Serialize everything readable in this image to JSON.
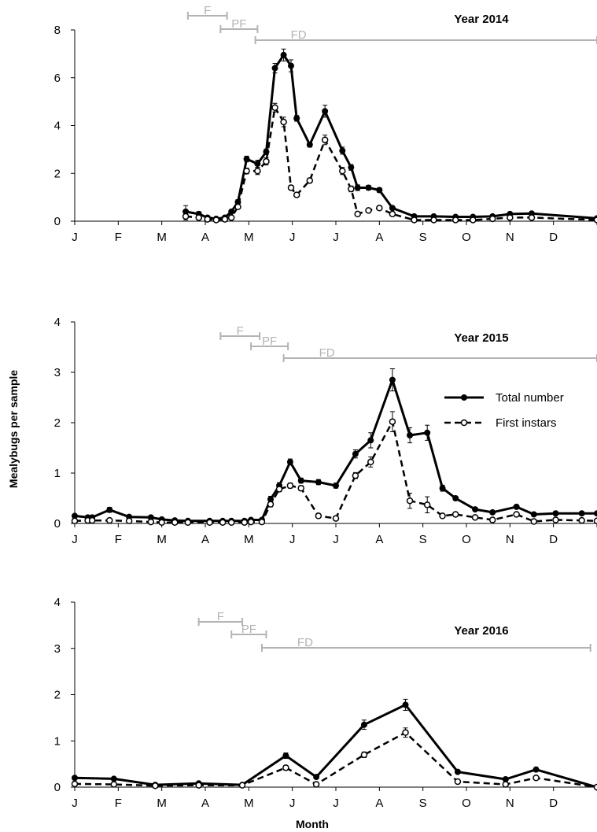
{
  "chart_data": [
    {
      "type": "line",
      "title": "Year 2014",
      "xlabel": "",
      "ylabel": "",
      "ylim": [
        0,
        8
      ],
      "yticks": [
        0,
        2,
        4,
        6,
        8
      ],
      "month_ticks": [
        "J",
        "F",
        "M",
        "A",
        "M",
        "J",
        "J",
        "A",
        "S",
        "O",
        "N",
        "D"
      ],
      "phases": [
        {
          "label": "F",
          "start": 2.6,
          "end": 3.5
        },
        {
          "label": "PF",
          "start": 3.35,
          "end": 4.2
        },
        {
          "label": "FD",
          "start": 4.15,
          "end": 12.0
        }
      ],
      "series": [
        {
          "name": "Total number",
          "style": "solid",
          "x": [
            2.55,
            2.85,
            3.05,
            3.25,
            3.45,
            3.6,
            3.75,
            3.95,
            4.2,
            4.4,
            4.6,
            4.8,
            4.97,
            5.1,
            5.4,
            5.75,
            6.15,
            6.35,
            6.5,
            6.75,
            7.0,
            7.3,
            7.8,
            8.25,
            8.75,
            9.15,
            9.6,
            10.0,
            10.5,
            12.0
          ],
          "y": [
            0.4,
            0.3,
            0.15,
            0.1,
            0.15,
            0.4,
            0.8,
            2.6,
            2.4,
            2.9,
            6.4,
            6.95,
            6.5,
            4.3,
            3.2,
            4.6,
            2.95,
            2.25,
            1.4,
            1.4,
            1.3,
            0.55,
            0.2,
            0.2,
            0.18,
            0.18,
            0.2,
            0.3,
            0.32,
            0.12
          ],
          "err": [
            0.25,
            0.1,
            0.08,
            0.05,
            0.05,
            0.08,
            0.1,
            0.12,
            0.15,
            0.12,
            0.2,
            0.25,
            0.25,
            0.12,
            0.1,
            0.25,
            0.15,
            0.12,
            0.12,
            0.1,
            0.1,
            0.08,
            0.05,
            0.05,
            0.05,
            0.05,
            0.05,
            0.05,
            0.05,
            0.05
          ]
        },
        {
          "name": "First instars",
          "style": "dashed",
          "x": [
            2.55,
            2.85,
            3.05,
            3.25,
            3.45,
            3.6,
            3.75,
            3.95,
            4.2,
            4.4,
            4.6,
            4.8,
            4.97,
            5.1,
            5.4,
            5.75,
            6.15,
            6.35,
            6.5,
            6.75,
            7.0,
            7.3,
            7.8,
            8.25,
            8.75,
            9.15,
            9.6,
            10.0,
            10.5,
            12.0
          ],
          "y": [
            0.2,
            0.15,
            0.08,
            0.05,
            0.08,
            0.15,
            0.6,
            2.1,
            2.1,
            2.5,
            4.75,
            4.15,
            1.4,
            1.1,
            1.7,
            3.4,
            2.1,
            1.35,
            0.3,
            0.45,
            0.55,
            0.3,
            0.05,
            0.05,
            0.05,
            0.05,
            0.1,
            0.15,
            0.15,
            0.05
          ],
          "err": [
            0.15,
            0.08,
            0.05,
            0.03,
            0.05,
            0.05,
            0.08,
            0.12,
            0.15,
            0.15,
            0.18,
            0.2,
            0.1,
            0.08,
            0.1,
            0.2,
            0.15,
            0.12,
            0.08,
            0.08,
            0.08,
            0.05,
            0.03,
            0.03,
            0.03,
            0.03,
            0.03,
            0.03,
            0.03,
            0.03
          ]
        }
      ]
    },
    {
      "type": "line",
      "title": "Year 2015",
      "xlabel": "",
      "ylabel": "",
      "ylim": [
        0,
        4
      ],
      "yticks": [
        0,
        1,
        2,
        3,
        4
      ],
      "month_ticks": [
        "J",
        "F",
        "M",
        "A",
        "M",
        "J",
        "J",
        "A",
        "S",
        "O",
        "N",
        "D"
      ],
      "phases": [
        {
          "label": "F",
          "start": 3.35,
          "end": 4.25
        },
        {
          "label": "PF",
          "start": 4.05,
          "end": 4.9
        },
        {
          "label": "FD",
          "start": 4.8,
          "end": 12.0
        }
      ],
      "series": [
        {
          "name": "Total number",
          "style": "solid",
          "x": [
            0.0,
            0.3,
            0.4,
            0.8,
            1.25,
            1.75,
            2.0,
            2.3,
            2.6,
            3.1,
            3.4,
            3.6,
            3.9,
            4.05,
            4.3,
            4.5,
            4.7,
            4.95,
            5.2,
            5.6,
            6.0,
            6.45,
            6.8,
            7.3,
            7.7,
            8.1,
            8.45,
            8.75,
            9.2,
            9.6,
            10.15,
            10.55,
            11.05,
            11.65,
            12.0
          ],
          "y": [
            0.15,
            0.12,
            0.12,
            0.27,
            0.13,
            0.12,
            0.08,
            0.06,
            0.05,
            0.05,
            0.05,
            0.05,
            0.05,
            0.07,
            0.07,
            0.48,
            0.75,
            1.22,
            0.85,
            0.82,
            0.75,
            1.38,
            1.65,
            2.85,
            1.75,
            1.8,
            0.7,
            0.5,
            0.28,
            0.22,
            0.33,
            0.18,
            0.2,
            0.2,
            0.2
          ],
          "err": [
            0.03,
            0.03,
            0.03,
            0.05,
            0.03,
            0.03,
            0.02,
            0.02,
            0.02,
            0.02,
            0.02,
            0.02,
            0.02,
            0.02,
            0.02,
            0.06,
            0.06,
            0.06,
            0.05,
            0.05,
            0.05,
            0.08,
            0.15,
            0.22,
            0.15,
            0.15,
            0.06,
            0.04,
            0.03,
            0.02,
            0.03,
            0.02,
            0.02,
            0.02,
            0.02
          ]
        },
        {
          "name": "First instars",
          "style": "dashed",
          "x": [
            0.0,
            0.3,
            0.4,
            0.8,
            1.25,
            1.75,
            2.0,
            2.3,
            2.6,
            3.1,
            3.4,
            3.6,
            3.9,
            4.05,
            4.3,
            4.5,
            4.7,
            4.95,
            5.2,
            5.6,
            6.0,
            6.45,
            6.8,
            7.3,
            7.7,
            8.1,
            8.45,
            8.75,
            9.2,
            9.6,
            10.15,
            10.55,
            11.05,
            11.65,
            12.0
          ],
          "y": [
            0.05,
            0.06,
            0.06,
            0.06,
            0.05,
            0.03,
            0.02,
            0.02,
            0.02,
            0.02,
            0.02,
            0.02,
            0.02,
            0.03,
            0.03,
            0.38,
            0.68,
            0.75,
            0.7,
            0.15,
            0.1,
            0.95,
            1.22,
            2.02,
            0.45,
            0.37,
            0.15,
            0.18,
            0.12,
            0.07,
            0.18,
            0.04,
            0.07,
            0.06,
            0.05
          ],
          "err": [
            0.02,
            0.02,
            0.02,
            0.02,
            0.02,
            0.01,
            0.01,
            0.01,
            0.01,
            0.01,
            0.01,
            0.01,
            0.01,
            0.01,
            0.01,
            0.05,
            0.05,
            0.05,
            0.05,
            0.04,
            0.04,
            0.06,
            0.1,
            0.2,
            0.15,
            0.16,
            0.03,
            0.03,
            0.03,
            0.02,
            0.03,
            0.02,
            0.02,
            0.02,
            0.02
          ]
        }
      ]
    },
    {
      "type": "line",
      "title": "Year 2016",
      "xlabel": "Month",
      "ylabel": "",
      "ylim": [
        0,
        4
      ],
      "yticks": [
        0,
        1,
        2,
        3,
        4
      ],
      "month_ticks": [
        "J",
        "F",
        "M",
        "A",
        "M",
        "J",
        "J",
        "A",
        "S",
        "O",
        "N",
        "D"
      ],
      "phases": [
        {
          "label": "F",
          "start": 2.85,
          "end": 3.85
        },
        {
          "label": "PF",
          "start": 3.6,
          "end": 4.4
        },
        {
          "label": "FD",
          "start": 4.3,
          "end": 11.85
        }
      ],
      "series": [
        {
          "name": "Total number",
          "style": "solid",
          "x": [
            0.0,
            0.9,
            1.85,
            2.85,
            3.85,
            4.85,
            5.55,
            6.65,
            7.6,
            8.8,
            9.9,
            10.6,
            12.0
          ],
          "y": [
            0.2,
            0.18,
            0.05,
            0.08,
            0.05,
            0.68,
            0.22,
            1.35,
            1.78,
            0.33,
            0.17,
            0.38,
            0.0
          ],
          "err": [
            0.02,
            0.02,
            0.02,
            0.02,
            0.02,
            0.06,
            0.03,
            0.1,
            0.12,
            0.03,
            0.02,
            0.03,
            0.01
          ]
        },
        {
          "name": "First instars",
          "style": "dashed",
          "x": [
            0.0,
            0.9,
            1.85,
            2.85,
            3.85,
            4.85,
            5.55,
            6.65,
            7.6,
            8.8,
            9.9,
            10.6,
            12.0
          ],
          "y": [
            0.07,
            0.06,
            0.03,
            0.04,
            0.04,
            0.42,
            0.06,
            0.7,
            1.18,
            0.12,
            0.06,
            0.2,
            0.0
          ],
          "err": [
            0.01,
            0.01,
            0.01,
            0.01,
            0.01,
            0.05,
            0.02,
            0.06,
            0.1,
            0.02,
            0.01,
            0.02,
            0.01
          ]
        }
      ]
    }
  ],
  "shared_ylabel": "Mealybugs per sample",
  "legend": {
    "total_label": "Total number",
    "instars_label": "First instars"
  }
}
